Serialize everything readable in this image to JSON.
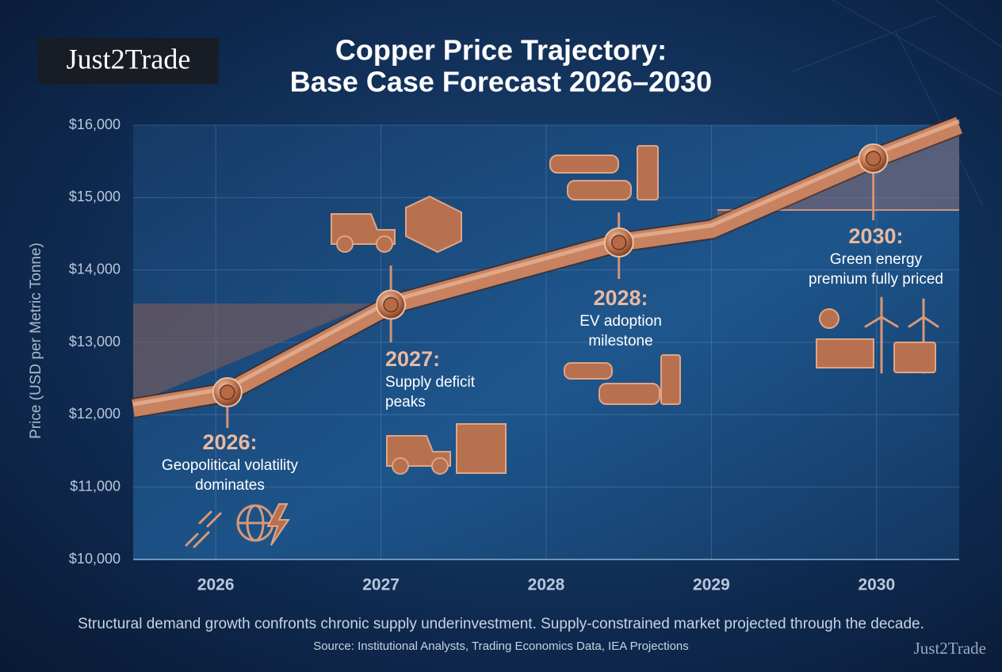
{
  "logo": "Just2Trade",
  "chart_data": {
    "type": "line",
    "title": [
      "Copper Price Trajectory:",
      "Base Case Forecast 2026–2030"
    ],
    "y_label": "Price (USD per Metric Tonne)",
    "xlim": [
      2025.5,
      2030.5
    ],
    "xticks": [
      2026,
      2027,
      2028,
      2029,
      2030
    ],
    "ylim": [
      10000,
      16000
    ],
    "yticks": [
      {
        "value": 10000,
        "label": "$10,000"
      },
      {
        "value": 11000,
        "label": "$11,000"
      },
      {
        "value": 12000,
        "label": "$12,000"
      },
      {
        "value": 13000,
        "label": "$13,000"
      },
      {
        "value": 14000,
        "label": "$14,000"
      },
      {
        "value": 15000,
        "label": "$15,000"
      },
      {
        "value": 16000,
        "label": "$16,000"
      }
    ],
    "grid": true,
    "series": [
      {
        "color": "#c8825f",
        "x": [
          2025.5,
          2026.07,
          2027.06,
          2028.44,
          2029.0,
          2029.98,
          2030.5
        ],
        "values": [
          12090,
          12310,
          13520,
          14380,
          14560,
          15540,
          16000
        ]
      }
    ],
    "annotations": [
      {
        "x": 2026.07,
        "y": 12310,
        "year": "2026:",
        "text": [
          "Geopolitical volatility",
          "dominates"
        ]
      },
      {
        "x": 2027.06,
        "y": 13520,
        "year": "2027:",
        "text": [
          "Supply deficit",
          "peaks"
        ]
      },
      {
        "x": 2028.44,
        "y": 14380,
        "year": "2028:",
        "text": [
          "EV adoption",
          "milestone"
        ]
      },
      {
        "x": 2029.98,
        "y": 15540,
        "year": "2030:",
        "text": [
          "Green energy",
          "premium fully priced"
        ]
      }
    ],
    "footnote": "Structural demand growth confronts chronic supply underinvestment. Supply-constrained market projected through the decade.",
    "source": "Source: Institutional Analysts, Trading Economics Data, IEA Projections"
  },
  "watermark": "Just2Trade"
}
